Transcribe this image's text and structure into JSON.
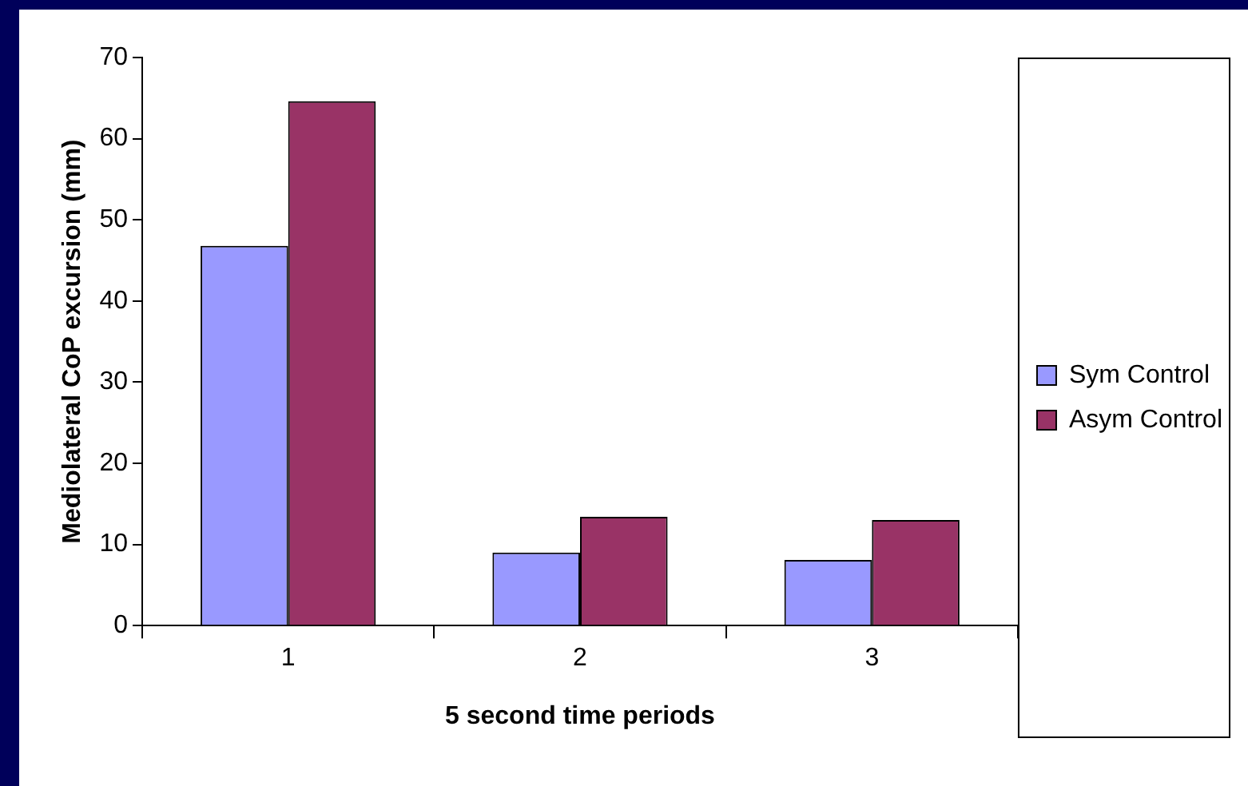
{
  "chart_data": {
    "type": "bar",
    "xlabel": "5 second time periods",
    "ylabel": "Mediolateral CoP excursion (mm)",
    "categories": [
      "1",
      "2",
      "3"
    ],
    "series": [
      {
        "name": "Sym Control",
        "color": "#9999ff",
        "values": [
          46.8,
          9.0,
          8.1
        ]
      },
      {
        "name": "Asym Control",
        "color": "#993366",
        "values": [
          64.6,
          13.4,
          13.0
        ]
      }
    ],
    "ylim": [
      0,
      70
    ],
    "yticks": [
      0,
      10,
      20,
      30,
      40,
      50,
      60,
      70
    ],
    "grid": false,
    "legend": "right"
  }
}
